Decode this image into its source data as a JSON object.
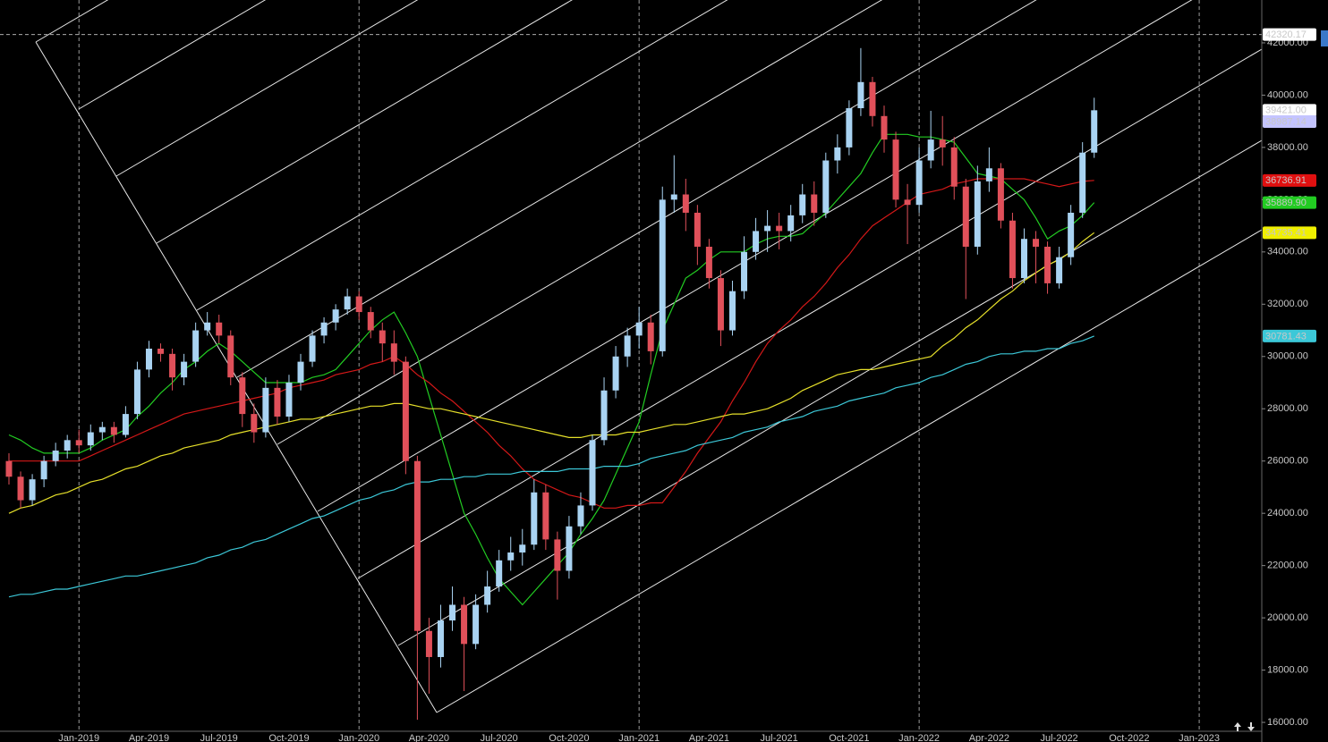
{
  "chart_data": {
    "type": "candlestick",
    "categories": [
      null,
      null,
      null,
      null,
      null,
      null,
      "Jan-2019",
      null,
      null,
      null,
      null,
      null,
      "Apr-2019",
      null,
      null,
      null,
      null,
      null,
      "Jul-2019",
      null,
      null,
      null,
      null,
      null,
      "Oct-2019",
      null,
      null,
      null,
      null,
      null,
      "Jan-2020",
      null,
      null,
      null,
      null,
      null,
      "Apr-2020",
      null,
      null,
      null,
      null,
      null,
      "Jul-2020",
      null,
      null,
      null,
      null,
      null,
      "Oct-2020",
      null,
      null,
      null,
      null,
      null,
      "Jan-2021",
      null,
      null,
      null,
      null,
      null,
      "Apr-2021",
      null,
      null,
      null,
      null,
      null,
      "Jul-2021",
      null,
      null,
      null,
      null,
      null,
      "Oct-2021",
      null,
      null,
      null,
      null,
      null,
      "Jan-2022",
      null,
      null,
      null,
      null,
      null,
      "Apr-2022",
      null,
      null,
      null,
      null,
      null,
      "Jul-2022",
      null,
      null,
      null,
      null,
      null,
      "Oct-2022",
      null,
      null,
      null,
      null,
      null,
      "Jan-2023"
    ],
    "ohlc": [
      [
        26000,
        26300,
        25100,
        25400
      ],
      [
        25400,
        25600,
        24200,
        24500
      ],
      [
        24500,
        25500,
        24300,
        25300
      ],
      [
        25300,
        26200,
        25000,
        26000
      ],
      [
        26000,
        26700,
        25800,
        26400
      ],
      [
        26400,
        27000,
        26100,
        26800
      ],
      [
        26800,
        27200,
        26300,
        26600
      ],
      [
        26600,
        27400,
        26400,
        27100
      ],
      [
        27100,
        27500,
        26800,
        27300
      ],
      [
        27300,
        27500,
        26700,
        27000
      ],
      [
        27000,
        28100,
        26900,
        27800
      ],
      [
        27800,
        29800,
        27600,
        29500
      ],
      [
        29500,
        30600,
        29200,
        30300
      ],
      [
        30300,
        30500,
        29800,
        30100
      ],
      [
        30100,
        30300,
        28700,
        29200
      ],
      [
        29200,
        30100,
        28900,
        29800
      ],
      [
        29800,
        31300,
        29600,
        31000
      ],
      [
        31000,
        31700,
        30800,
        31300
      ],
      [
        31300,
        31600,
        30500,
        30800
      ],
      [
        30800,
        31000,
        28900,
        29200
      ],
      [
        29200,
        29400,
        27300,
        27800
      ],
      [
        27800,
        28200,
        26700,
        27100
      ],
      [
        27100,
        29200,
        26900,
        28800
      ],
      [
        28800,
        29100,
        27400,
        27700
      ],
      [
        27700,
        29300,
        27500,
        29000
      ],
      [
        29000,
        30100,
        28700,
        29800
      ],
      [
        29800,
        31000,
        29600,
        30800
      ],
      [
        30800,
        31500,
        30500,
        31300
      ],
      [
        31300,
        32000,
        31000,
        31800
      ],
      [
        31800,
        32600,
        31600,
        32300
      ],
      [
        32300,
        32500,
        31400,
        31700
      ],
      [
        31700,
        31900,
        30700,
        31000
      ],
      [
        31000,
        31300,
        29800,
        30500
      ],
      [
        30500,
        31000,
        29300,
        29800
      ],
      [
        29800,
        30000,
        25500,
        26000
      ],
      [
        26000,
        26200,
        16100,
        19500
      ],
      [
        19500,
        20000,
        17100,
        18500
      ],
      [
        18500,
        20500,
        18100,
        19900
      ],
      [
        19900,
        21200,
        19500,
        20500
      ],
      [
        20500,
        20800,
        17200,
        19000
      ],
      [
        19000,
        20900,
        18800,
        20500
      ],
      [
        20500,
        21800,
        20200,
        21200
      ],
      [
        21200,
        22600,
        21000,
        22200
      ],
      [
        22200,
        23100,
        21800,
        22500
      ],
      [
        22500,
        23400,
        22000,
        22800
      ],
      [
        22800,
        25300,
        22600,
        24800
      ],
      [
        24800,
        25100,
        22600,
        23000
      ],
      [
        23000,
        23300,
        20700,
        21800
      ],
      [
        21800,
        23900,
        21500,
        23500
      ],
      [
        23500,
        24800,
        23200,
        24300
      ],
      [
        24300,
        27000,
        24100,
        26800
      ],
      [
        26800,
        29200,
        26600,
        28700
      ],
      [
        28700,
        30400,
        28400,
        30000
      ],
      [
        30000,
        31100,
        29600,
        30800
      ],
      [
        30800,
        31900,
        30300,
        31300
      ],
      [
        31300,
        31600,
        29700,
        30200
      ],
      [
        30200,
        36500,
        30000,
        36000
      ],
      [
        36000,
        37700,
        35500,
        36200
      ],
      [
        36200,
        36800,
        34800,
        35500
      ],
      [
        35500,
        35800,
        33500,
        34200
      ],
      [
        34200,
        34500,
        32600,
        33000
      ],
      [
        33000,
        33300,
        30400,
        31000
      ],
      [
        31000,
        32900,
        30800,
        32500
      ],
      [
        32500,
        34600,
        32200,
        34000
      ],
      [
        34000,
        35300,
        33700,
        34800
      ],
      [
        34800,
        35600,
        34000,
        35000
      ],
      [
        35000,
        35500,
        34100,
        34800
      ],
      [
        34800,
        35800,
        34400,
        35400
      ],
      [
        35400,
        36600,
        35100,
        36200
      ],
      [
        36200,
        36700,
        35000,
        35500
      ],
      [
        35500,
        37800,
        35300,
        37500
      ],
      [
        37500,
        38500,
        37000,
        38000
      ],
      [
        38000,
        39800,
        37700,
        39500
      ],
      [
        39500,
        41800,
        39200,
        40500
      ],
      [
        40500,
        40700,
        38800,
        39200
      ],
      [
        39200,
        39600,
        37800,
        38300
      ],
      [
        38300,
        38600,
        35700,
        36000
      ],
      [
        36000,
        36600,
        34300,
        35800
      ],
      [
        35800,
        38000,
        35500,
        37500
      ],
      [
        37500,
        39400,
        37200,
        38300
      ],
      [
        38300,
        39200,
        37300,
        38000
      ],
      [
        38000,
        38400,
        36000,
        36500
      ],
      [
        36500,
        36800,
        32200,
        34200
      ],
      [
        34200,
        37300,
        33900,
        36700
      ],
      [
        36700,
        38000,
        36300,
        37200
      ],
      [
        37200,
        37400,
        34900,
        35200
      ],
      [
        35200,
        35500,
        32600,
        33000
      ],
      [
        33000,
        34900,
        32800,
        34500
      ],
      [
        34500,
        34800,
        32800,
        34200
      ],
      [
        34200,
        34400,
        32400,
        32800
      ],
      [
        32800,
        34200,
        32600,
        33800
      ],
      [
        33800,
        35800,
        33500,
        35500
      ],
      [
        35500,
        38200,
        35300,
        37800
      ],
      [
        37800,
        39900,
        37600,
        39421
      ],
      null,
      null,
      null,
      null,
      null,
      null,
      null,
      null,
      null
    ],
    "up_color": "#a9d3f2",
    "down_color": "#e0505a",
    "series": [
      {
        "color": "#22cc22",
        "values": [
          27000,
          26800,
          26500,
          26300,
          26300,
          26300,
          26300,
          26500,
          26800,
          27000,
          27200,
          27700,
          28100,
          28600,
          29000,
          29500,
          29800,
          30200,
          30500,
          30200,
          29800,
          29400,
          29000,
          29000,
          29000,
          29000,
          29200,
          29300,
          29500,
          30000,
          30500,
          31000,
          31400,
          31700,
          30900,
          30000,
          28500,
          27000,
          25500,
          24000,
          23200,
          22300,
          21500,
          21000,
          20500,
          21000,
          21500,
          22000,
          22500,
          23200,
          23800,
          24500,
          25500,
          26500,
          27500,
          29300,
          31000,
          32000,
          33000,
          33300,
          33700,
          34000,
          34000,
          34000,
          34300,
          34500,
          34600,
          34600,
          34700,
          35100,
          35500,
          36000,
          36500,
          37000,
          37800,
          38500,
          38500,
          38500,
          38400,
          38400,
          38300,
          38200,
          37600,
          37000,
          36900,
          36800,
          36400,
          36000,
          35300,
          34500,
          34800,
          35000,
          35400,
          35890,
          null,
          null,
          null,
          null,
          null,
          null,
          null,
          null,
          null
        ]
      },
      {
        "color": "#d41818",
        "values": [
          26000,
          26000,
          26000,
          26000,
          26000,
          26000,
          26000,
          26200,
          26400,
          26600,
          26800,
          27000,
          27200,
          27400,
          27600,
          27800,
          27900,
          28000,
          28100,
          28200,
          28300,
          28400,
          28500,
          28600,
          28800,
          28900,
          29000,
          29100,
          29300,
          29400,
          29500,
          29700,
          29800,
          30000,
          29700,
          29300,
          29000,
          28600,
          28300,
          27900,
          27500,
          27100,
          26600,
          26200,
          25700,
          25300,
          25100,
          24900,
          24700,
          24600,
          24400,
          24200,
          24200,
          24300,
          24300,
          24400,
          24400,
          25000,
          25600,
          26300,
          26900,
          27500,
          28300,
          29000,
          29800,
          30500,
          31000,
          31400,
          31900,
          32300,
          32800,
          33400,
          33900,
          34500,
          35000,
          35300,
          35600,
          35900,
          36200,
          36300,
          36400,
          36600,
          36700,
          36800,
          36800,
          36800,
          36800,
          36800,
          36700,
          36600,
          36500,
          36600,
          36700,
          36737,
          null,
          null,
          null,
          null,
          null,
          null,
          null,
          null,
          null
        ]
      },
      {
        "color": "#e6e02a",
        "values": [
          24000,
          24200,
          24300,
          24500,
          24700,
          24800,
          25000,
          25200,
          25300,
          25500,
          25700,
          25800,
          26000,
          26200,
          26300,
          26500,
          26600,
          26700,
          26800,
          27000,
          27100,
          27200,
          27300,
          27400,
          27500,
          27600,
          27600,
          27700,
          27800,
          27900,
          28000,
          28100,
          28100,
          28200,
          28200,
          28100,
          28000,
          28000,
          27900,
          27800,
          27700,
          27600,
          27500,
          27400,
          27300,
          27200,
          27100,
          27000,
          26900,
          26900,
          27000,
          27000,
          27000,
          27100,
          27100,
          27200,
          27300,
          27400,
          27400,
          27500,
          27600,
          27700,
          27800,
          27800,
          27900,
          28000,
          28200,
          28400,
          28700,
          28900,
          29100,
          29300,
          29400,
          29500,
          29500,
          29600,
          29700,
          29800,
          29900,
          30000,
          30400,
          30700,
          31100,
          31400,
          31800,
          32200,
          32500,
          32900,
          33200,
          33500,
          33700,
          34000,
          34400,
          34735,
          null,
          null,
          null,
          null,
          null,
          null,
          null,
          null,
          null
        ]
      },
      {
        "color": "#3cc8d8",
        "values": [
          20800,
          20900,
          20900,
          21000,
          21100,
          21100,
          21200,
          21300,
          21400,
          21500,
          21600,
          21600,
          21700,
          21800,
          21900,
          22000,
          22100,
          22300,
          22400,
          22600,
          22700,
          22900,
          23000,
          23200,
          23400,
          23600,
          23800,
          23900,
          24100,
          24300,
          24500,
          24600,
          24800,
          24900,
          25100,
          25200,
          25200,
          25300,
          25300,
          25400,
          25400,
          25500,
          25500,
          25500,
          25600,
          25600,
          25600,
          25600,
          25700,
          25700,
          25700,
          25800,
          25800,
          25800,
          25900,
          26100,
          26200,
          26300,
          26400,
          26600,
          26700,
          26800,
          26900,
          27100,
          27200,
          27300,
          27500,
          27600,
          27700,
          27900,
          28000,
          28100,
          28300,
          28400,
          28500,
          28600,
          28800,
          28900,
          29000,
          29200,
          29300,
          29500,
          29700,
          29800,
          30000,
          30100,
          30100,
          30200,
          30200,
          30300,
          30300,
          30500,
          30600,
          30781,
          null,
          null,
          null,
          null,
          null,
          null,
          null,
          null,
          null
        ]
      }
    ],
    "price_labels": [
      {
        "value": 42320.17,
        "label": "42320.17",
        "color": "#ffffff"
      },
      {
        "value": 39421,
        "label": "39421.00",
        "color": "#ffffff"
      },
      {
        "value": 38987.14,
        "label": "38987.14",
        "color": "#c4c4ff"
      },
      {
        "value": 36736.91,
        "label": "36736.91",
        "color": "#e01010"
      },
      {
        "value": 35889.9,
        "label": "35889.90",
        "color": "#22cc22"
      },
      {
        "value": 34735.41,
        "label": "34735.41",
        "color": "#f0f000"
      },
      {
        "value": 30781.43,
        "label": "30781.43",
        "color": "#3cc8d8"
      }
    ],
    "ylim": [
      15660,
      43640
    ],
    "yticks": [
      {
        "value": 16000,
        "label": "16000.00"
      },
      {
        "value": 18000,
        "label": "18000.00"
      },
      {
        "value": 20000,
        "label": "20000.00"
      },
      {
        "value": 22000,
        "label": "22000.00"
      },
      {
        "value": 24000,
        "label": "24000.00"
      },
      {
        "value": 26000,
        "label": "26000.00"
      },
      {
        "value": 28000,
        "label": "28000.00"
      },
      {
        "value": 30000,
        "label": "30000.00"
      },
      {
        "value": 32000,
        "label": "32000.00"
      },
      {
        "value": 34000,
        "label": "34000.00"
      },
      {
        "value": 36000,
        "label": "36000.00"
      },
      {
        "value": 38000,
        "label": "38000.00"
      },
      {
        "value": 40000,
        "label": "40000.00"
      },
      {
        "value": 42000,
        "label": "42000.00"
      }
    ]
  }
}
